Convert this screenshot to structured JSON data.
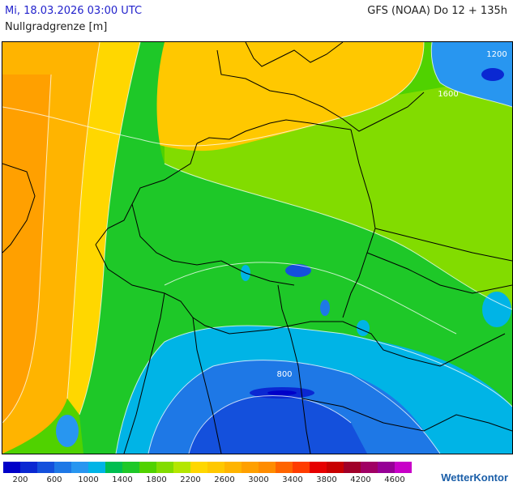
{
  "header": {
    "datetime": "Mi, 18.03.2026 03:00 UTC",
    "model": "GFS (NOAA) Do 12 + 135h",
    "parameter": "Nullgradgrenze [m]"
  },
  "map": {
    "contour_labels": [
      "1200",
      "1600",
      "800"
    ]
  },
  "legend": {
    "colors": [
      "#0000c8",
      "#0a28d2",
      "#1450dc",
      "#1e78e6",
      "#2896f0",
      "#00b4e6",
      "#00be50",
      "#1ec828",
      "#50d200",
      "#82dc00",
      "#b4e600",
      "#ffd700",
      "#ffc800",
      "#ffb400",
      "#ffa000",
      "#ff8c00",
      "#ff6400",
      "#ff3c00",
      "#e60000",
      "#c80000",
      "#a00028",
      "#a00064",
      "#960096",
      "#c800c8"
    ],
    "tick_labels": [
      "200",
      "600",
      "1000",
      "1400",
      "1800",
      "2200",
      "2600",
      "3000",
      "3400",
      "3800",
      "4200",
      "4600"
    ]
  },
  "brand": "WetterKontor"
}
